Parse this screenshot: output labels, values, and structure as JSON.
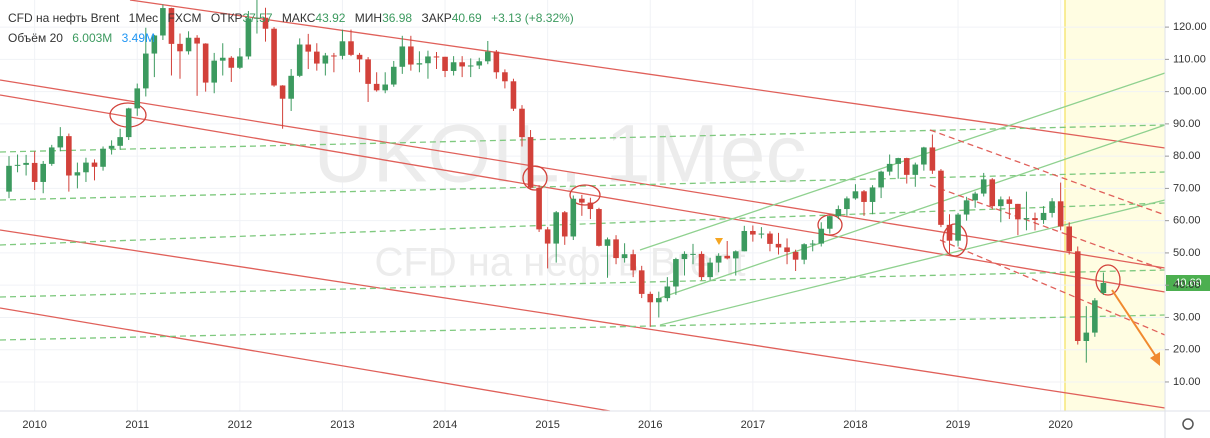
{
  "chart_data": {
    "type": "candlestick",
    "title": "CFD на нефть Brent",
    "interval": "1Мес",
    "source": "FXCM",
    "open_label": "ОТКР",
    "high_label": "МАКС",
    "low_label": "МИН",
    "close_label": "ЗАКР",
    "change": "+3.13 (+8.32%)",
    "volume_label": "Объём 20",
    "volume_value": "6.003M",
    "volume_ma": "3.49M",
    "watermark": "UKOIL, 1Мес",
    "watermark_sub": "CFD на нефть Brent",
    "up_color": "#3c9a5f",
    "down_color": "#d2413a",
    "grid": true,
    "ylim": [
      1.0,
      128.4
    ],
    "yticks": [
      {
        "value": 10,
        "label": "10.00"
      },
      {
        "value": 20,
        "label": "20.00"
      },
      {
        "value": 30,
        "label": "30.00"
      },
      {
        "value": 40,
        "label": "40.00"
      },
      {
        "value": 50,
        "label": "50.00"
      },
      {
        "value": 60,
        "label": "60.00"
      },
      {
        "value": 70,
        "label": "70.00"
      },
      {
        "value": 80,
        "label": "80.00"
      },
      {
        "value": 90,
        "label": "90.00"
      },
      {
        "value": 100,
        "label": "100.00"
      },
      {
        "value": 110,
        "label": "110.00"
      },
      {
        "value": 120,
        "label": "120.00"
      }
    ],
    "categories": [
      null,
      null,
      null,
      "2010",
      null,
      null,
      null,
      null,
      null,
      null,
      null,
      null,
      null,
      null,
      null,
      "2011",
      null,
      null,
      null,
      null,
      null,
      null,
      null,
      null,
      null,
      null,
      null,
      "2012",
      null,
      null,
      null,
      null,
      null,
      null,
      null,
      null,
      null,
      null,
      null,
      "2013",
      null,
      null,
      null,
      null,
      null,
      null,
      null,
      null,
      null,
      null,
      null,
      "2014",
      null,
      null,
      null,
      null,
      null,
      null,
      null,
      null,
      null,
      null,
      null,
      "2015",
      null,
      null,
      null,
      null,
      null,
      null,
      null,
      null,
      null,
      null,
      null,
      "2016",
      null,
      null,
      null,
      null,
      null,
      null,
      null,
      null,
      null,
      null,
      null,
      "2017",
      null,
      null,
      null,
      null,
      null,
      null,
      null,
      null,
      null,
      null,
      null,
      "2018",
      null,
      null,
      null,
      null,
      null,
      null,
      null,
      null,
      null,
      null,
      null,
      "2019",
      null,
      null,
      null,
      null,
      null,
      null,
      null,
      null,
      null,
      null,
      null,
      "2020",
      null,
      null,
      null,
      null,
      null
    ],
    "open": [
      69.0,
      77.0,
      77.3,
      77.9,
      72.0,
      77.6,
      82.7,
      86.2,
      74.0,
      75.0,
      78.0,
      76.7,
      82.3,
      83.2,
      85.9,
      94.8,
      101.0,
      111.8,
      117.4,
      125.9,
      114.8,
      112.5,
      116.7,
      114.9,
      102.8,
      109.6,
      110.5,
      107.4,
      110.9,
      122.7,
      122.9,
      119.5,
      101.9,
      97.8,
      104.9,
      114.6,
      112.4,
      108.7,
      111.2,
      111.1,
      115.6,
      111.4,
      110.0,
      102.4,
      100.4,
      102.2,
      107.7,
      114.0,
      108.4,
      108.8,
      110.9,
      110.8,
      106.4,
      109.1,
      107.8,
      108.1,
      109.4,
      112.4,
      106.0,
      103.2,
      94.7,
      85.9,
      70.2,
      57.3,
      52.9,
      62.6,
      55.1,
      66.8,
      65.6,
      63.6,
      52.2,
      54.2,
      48.4,
      49.6,
      44.6,
      37.3,
      34.7,
      36.0,
      39.6,
      48.1,
      49.7,
      49.7,
      42.5,
      47.0,
      49.1,
      48.3,
      50.5,
      56.8,
      55.7,
      56.0,
      52.8,
      51.7,
      50.3,
      47.9,
      52.7,
      52.9,
      57.5,
      61.4,
      63.6,
      66.9,
      69.1,
      65.8,
      70.3,
      75.2,
      77.6,
      79.4,
      74.2,
      77.4,
      82.7,
      75.5,
      58.7,
      53.8,
      61.9,
      66.3,
      68.4,
      72.8,
      64.5,
      66.6,
      65.2,
      60.4,
      60.8,
      60.2,
      62.4,
      66.0,
      58.2,
      50.5,
      22.7,
      25.3,
      37.57
    ],
    "high": [
      80.0,
      80.5,
      80.4,
      81.5,
      78.5,
      83.5,
      89.0,
      87.0,
      78.0,
      79.5,
      79.0,
      83.0,
      84.9,
      88.5,
      95.0,
      102.5,
      119.8,
      117.6,
      127.0,
      126.0,
      118.0,
      118.7,
      117.5,
      115.0,
      112.0,
      115.0,
      111.0,
      113.5,
      125.0,
      128.4,
      126.0,
      120.0,
      102.0,
      107.0,
      116.5,
      117.9,
      115.0,
      112.0,
      112.0,
      119.2,
      119.2,
      112.0,
      110.7,
      106.0,
      106.0,
      109.5,
      117.3,
      117.3,
      112.5,
      112.7,
      112.3,
      110.8,
      111.0,
      111.0,
      110.3,
      110.5,
      115.7,
      112.9,
      106.9,
      104.0,
      95.8,
      88.1,
      71.0,
      58.0,
      63.0,
      63.0,
      67.8,
      68.0,
      67.1,
      64.0,
      54.8,
      55.5,
      53.0,
      51.0,
      46.0,
      38.0,
      38.0,
      42.5,
      48.5,
      50.5,
      52.8,
      50.5,
      48.5,
      49.9,
      53.7,
      50.8,
      58.4,
      58.5,
      58.0,
      56.7,
      56.2,
      54.5,
      51.0,
      53.0,
      54.0,
      59.5,
      61.5,
      64.7,
      67.5,
      71.3,
      69.5,
      71.0,
      75.5,
      80.5,
      79.5,
      79.5,
      78.0,
      82.9,
      86.7,
      76.0,
      62.0,
      62.4,
      67.4,
      69.0,
      74.8,
      73.2,
      67.5,
      67.5,
      65.2,
      69.0,
      62.5,
      64.5,
      67.0,
      71.8,
      59.5,
      52.0,
      33.5,
      36.0,
      43.92
    ],
    "low": [
      67.0,
      75.0,
      74.0,
      69.5,
      68.5,
      77.0,
      81.5,
      69.0,
      70.0,
      72.0,
      72.5,
      75.5,
      80.5,
      82.0,
      85.0,
      92.5,
      98.5,
      104.5,
      116.0,
      105.0,
      104.0,
      111.5,
      98.7,
      100.0,
      99.5,
      105.0,
      103.0,
      107.0,
      110.0,
      118.0,
      115.5,
      101.5,
      88.5,
      94.0,
      104.5,
      107.0,
      106.5,
      105.0,
      106.0,
      110.0,
      111.0,
      106.0,
      96.8,
      100.0,
      99.5,
      101.5,
      105.5,
      106.5,
      106.0,
      104.0,
      107.0,
      104.5,
      105.0,
      104.5,
      104.5,
      107.0,
      108.5,
      104.0,
      101.0,
      94.0,
      83.0,
      70.0,
      56.5,
      45.2,
      47.0,
      52.5,
      54.0,
      61.5,
      60.5,
      52.0,
      42.3,
      46.5,
      47.0,
      42.5,
      36.0,
      27.1,
      30.0,
      35.0,
      37.0,
      43.0,
      46.5,
      41.5,
      41.5,
      44.0,
      48.0,
      43.0,
      50.5,
      53.5,
      54.5,
      50.5,
      49.5,
      46.5,
      44.4,
      46.5,
      50.5,
      52.0,
      56.0,
      60.5,
      61.5,
      66.5,
      61.5,
      62.0,
      67.0,
      74.0,
      73.0,
      71.5,
      70.5,
      75.5,
      74.5,
      58.0,
      50.0,
      52.0,
      60.0,
      64.0,
      67.5,
      63.5,
      59.5,
      60.5,
      55.5,
      57.0,
      57.0,
      59.0,
      61.0,
      57.0,
      49.5,
      21.6,
      16.0,
      24.0,
      36.98
    ],
    "close": [
      77.0,
      77.3,
      77.9,
      72.0,
      77.6,
      82.7,
      86.2,
      74.0,
      75.0,
      78.0,
      76.7,
      82.3,
      83.2,
      85.9,
      94.8,
      101.0,
      111.8,
      117.4,
      125.9,
      114.8,
      112.5,
      116.7,
      114.9,
      102.8,
      109.6,
      110.5,
      107.4,
      110.9,
      122.7,
      122.9,
      119.5,
      101.9,
      97.8,
      104.9,
      114.6,
      112.4,
      108.7,
      111.2,
      111.1,
      115.6,
      111.4,
      110.0,
      102.4,
      100.4,
      102.2,
      107.7,
      114.0,
      108.4,
      108.8,
      110.9,
      110.8,
      106.4,
      109.1,
      107.8,
      108.1,
      109.4,
      112.4,
      106.0,
      103.2,
      94.7,
      85.9,
      70.2,
      57.3,
      52.9,
      62.6,
      55.1,
      66.8,
      65.6,
      63.6,
      52.2,
      54.2,
      48.4,
      49.6,
      44.6,
      37.3,
      34.7,
      36.0,
      39.6,
      48.1,
      49.7,
      49.7,
      42.5,
      47.0,
      49.1,
      48.3,
      50.5,
      56.8,
      55.7,
      56.0,
      52.8,
      51.7,
      50.3,
      47.9,
      52.7,
      52.9,
      57.5,
      61.4,
      63.6,
      66.9,
      69.1,
      65.8,
      70.3,
      75.2,
      77.6,
      79.4,
      74.2,
      77.4,
      82.7,
      75.5,
      58.7,
      53.8,
      61.9,
      66.3,
      68.4,
      72.8,
      64.5,
      66.6,
      65.2,
      60.4,
      60.8,
      60.2,
      62.4,
      66.0,
      58.2,
      50.5,
      22.7,
      25.3,
      35.3,
      40.69
    ]
  }
}
